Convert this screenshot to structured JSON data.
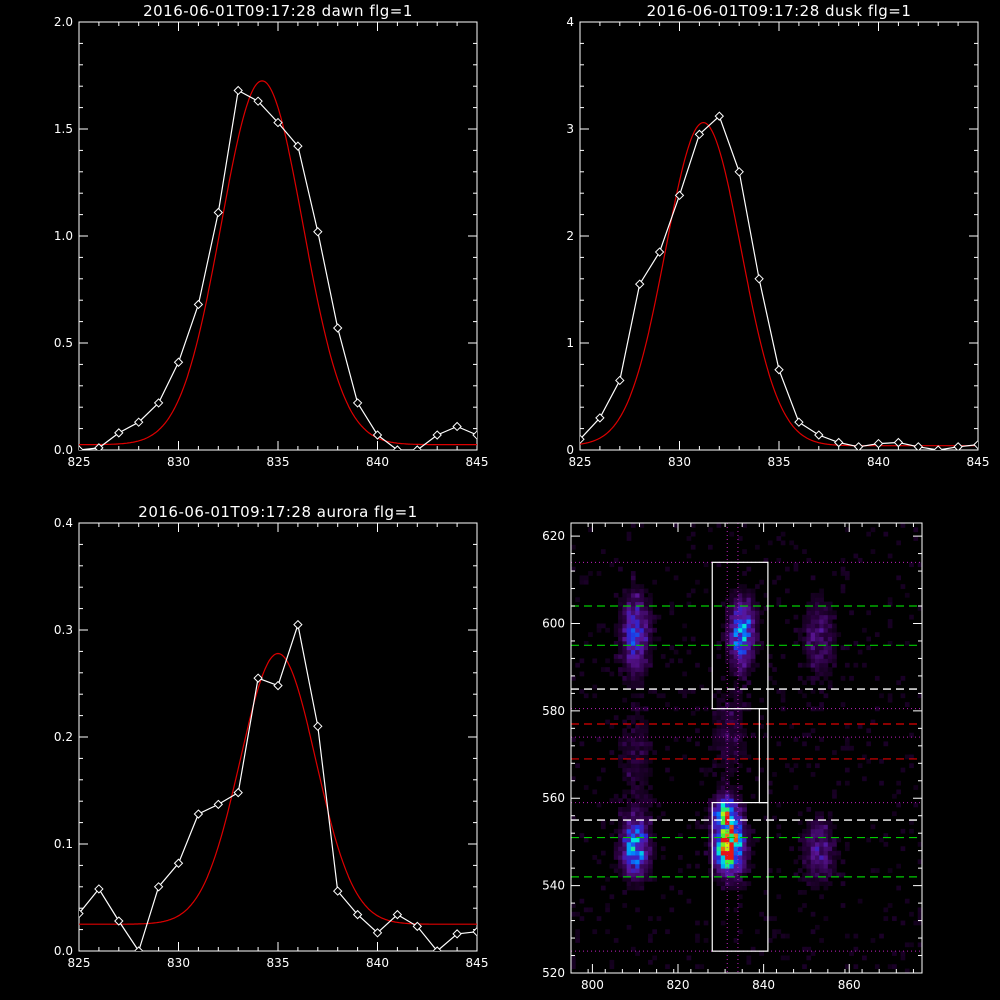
{
  "colors": {
    "background": "#000000",
    "axis": "#ffffff",
    "data": "#ffffff",
    "fit": "#dd0000",
    "green": "#00cc00",
    "red": "#dd0000"
  },
  "chart_data": [
    {
      "type": "line",
      "title": "2016-06-01T09:17:28 dawn flg=1",
      "xlim": [
        825,
        845
      ],
      "ylim": [
        0,
        2.0
      ],
      "xticks": [
        825,
        830,
        835,
        840,
        845
      ],
      "yticks": [
        0.0,
        0.5,
        1.0,
        1.5,
        2.0
      ],
      "ytick_labels": [
        "0.0",
        "0.5",
        "1.0",
        "1.5",
        "2.0"
      ],
      "series": [
        {
          "role": "data",
          "marker": "diamond",
          "x": [
            825,
            826,
            827,
            828,
            829,
            830,
            831,
            832,
            833,
            834,
            835,
            836,
            837,
            838,
            839,
            840,
            841,
            842,
            843,
            844,
            845
          ],
          "y": [
            0.0,
            0.01,
            0.08,
            0.13,
            0.22,
            0.41,
            0.68,
            1.11,
            1.68,
            1.63,
            1.53,
            1.42,
            1.02,
            0.57,
            0.22,
            0.07,
            0.0,
            0.0,
            0.07,
            0.11,
            0.07
          ]
        },
        {
          "role": "fit",
          "curve": "gaussian",
          "amp": 1.7,
          "center": 834.2,
          "sigma": 2.05,
          "offset": 0.025
        }
      ]
    },
    {
      "type": "line",
      "title": "2016-06-01T09:17:28 dusk flg=1",
      "xlim": [
        825,
        845
      ],
      "ylim": [
        0,
        4
      ],
      "xticks": [
        825,
        830,
        835,
        840,
        845
      ],
      "yticks": [
        0,
        1,
        2,
        3,
        4
      ],
      "ytick_labels": [
        "0",
        "1",
        "2",
        "3",
        "4"
      ],
      "series": [
        {
          "role": "data",
          "marker": "diamond",
          "x": [
            825,
            826,
            827,
            828,
            829,
            830,
            831,
            832,
            833,
            834,
            835,
            836,
            837,
            838,
            839,
            840,
            841,
            842,
            843,
            844,
            845
          ],
          "y": [
            0.1,
            0.3,
            0.65,
            1.55,
            1.85,
            2.38,
            2.95,
            3.12,
            2.6,
            1.6,
            0.75,
            0.26,
            0.14,
            0.07,
            0.03,
            0.06,
            0.07,
            0.03,
            0.0,
            0.03,
            0.05
          ]
        },
        {
          "role": "fit",
          "curve": "gaussian",
          "amp": 3.02,
          "center": 831.2,
          "sigma": 1.9,
          "offset": 0.04
        }
      ]
    },
    {
      "type": "line",
      "title": "2016-06-01T09:17:28 aurora flg=1",
      "xlim": [
        825,
        845
      ],
      "ylim": [
        0,
        0.4
      ],
      "xticks": [
        825,
        830,
        835,
        840,
        845
      ],
      "yticks": [
        0.0,
        0.1,
        0.2,
        0.3,
        0.4
      ],
      "ytick_labels": [
        "0.0",
        "0.1",
        "0.2",
        "0.3",
        "0.4"
      ],
      "series": [
        {
          "role": "data",
          "marker": "diamond",
          "x": [
            825,
            826,
            827,
            828,
            829,
            830,
            831,
            832,
            833,
            834,
            835,
            836,
            837,
            838,
            839,
            840,
            841,
            842,
            843,
            844,
            845
          ],
          "y": [
            0.035,
            0.058,
            0.028,
            0.0,
            0.06,
            0.082,
            0.128,
            0.137,
            0.148,
            0.255,
            0.248,
            0.305,
            0.21,
            0.056,
            0.034,
            0.017,
            0.034,
            0.023,
            0.0,
            0.016,
            0.018
          ]
        },
        {
          "role": "fit",
          "curve": "gaussian",
          "amp": 0.253,
          "center": 835.0,
          "sigma": 1.9,
          "offset": 0.025
        }
      ]
    },
    {
      "type": "heatmap",
      "title": "",
      "xlim": [
        795,
        877
      ],
      "ylim": [
        520,
        623
      ],
      "xticks": [
        800,
        820,
        840,
        860
      ],
      "yticks": [
        520,
        540,
        560,
        580,
        600,
        620
      ],
      "ytick_labels": [
        "520",
        "540",
        "560",
        "580",
        "600",
        "620"
      ],
      "colormap": "rainbow-on-black",
      "blobs": [
        {
          "x": 832,
          "y": 549,
          "sx": 2.2,
          "sy": 4.2,
          "amp": 1.0
        },
        {
          "x": 831,
          "y": 557,
          "sx": 2.0,
          "sy": 2.5,
          "amp": 0.55
        },
        {
          "x": 835,
          "y": 598,
          "sx": 2.0,
          "sy": 5.0,
          "amp": 0.55
        },
        {
          "x": 810,
          "y": 549,
          "sx": 2.2,
          "sy": 4.5,
          "amp": 0.55
        },
        {
          "x": 810,
          "y": 598,
          "sx": 2.2,
          "sy": 6.0,
          "amp": 0.4
        },
        {
          "x": 853,
          "y": 548,
          "sx": 2.5,
          "sy": 5.0,
          "amp": 0.25
        },
        {
          "x": 853,
          "y": 597,
          "sx": 2.5,
          "sy": 6.0,
          "amp": 0.2
        },
        {
          "x": 832,
          "y": 575,
          "sx": 3.0,
          "sy": 7.0,
          "amp": 0.12
        },
        {
          "x": 810,
          "y": 570,
          "sx": 3.0,
          "sy": 8.0,
          "amp": 0.1
        }
      ],
      "overlays": {
        "boxes": [
          [
            828,
            580.5,
            841,
            614
          ],
          [
            828,
            525,
            841,
            559
          ]
        ],
        "connector": {
          "x0": 839,
          "x1": 841,
          "y0": 559,
          "y1": 580.5
        },
        "dotted_h": [
          614,
          580.5,
          574,
          559,
          525
        ],
        "dotted_v": [
          831.5,
          834
        ],
        "green_dashed": [
          604,
          595,
          551,
          542
        ],
        "white_dashed": [
          585,
          555
        ],
        "red_dashed": [
          577,
          569
        ]
      }
    }
  ]
}
